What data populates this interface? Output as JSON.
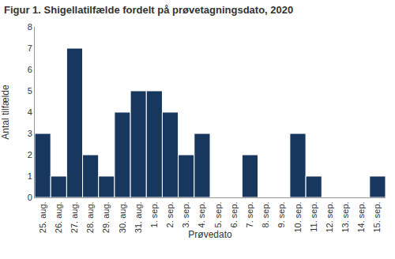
{
  "chart_data": {
    "type": "bar",
    "title": "Figur 1. Shigellatilfælde fordelt på prøvetagningsdato, 2020",
    "x_label": "Prøvedato",
    "y_label": "Antal tilfælde",
    "categories": [
      "25. aug.",
      "26. aug.",
      "27. aug.",
      "28. aug.",
      "29. aug.",
      "30. aug.",
      "31. aug.",
      "1. sep.",
      "2. sep.",
      "3. sep.",
      "4. sep.",
      "5. sep.",
      "6. sep.",
      "7. sep.",
      "8. sep.",
      "9. sep.",
      "10. sep.",
      "11. sep.",
      "12. sep.",
      "13. sep.",
      "14. sep.",
      "15. sep."
    ],
    "values": [
      3,
      1,
      7,
      2,
      1,
      4,
      5,
      5,
      4,
      2,
      3,
      0,
      0,
      2,
      0,
      0,
      3,
      1,
      0,
      0,
      0,
      1
    ],
    "color": "#17375e",
    "ylim": [
      0,
      8
    ],
    "yticks": [
      0,
      1,
      2,
      3,
      4,
      5,
      6,
      7,
      8
    ],
    "grid": true
  }
}
